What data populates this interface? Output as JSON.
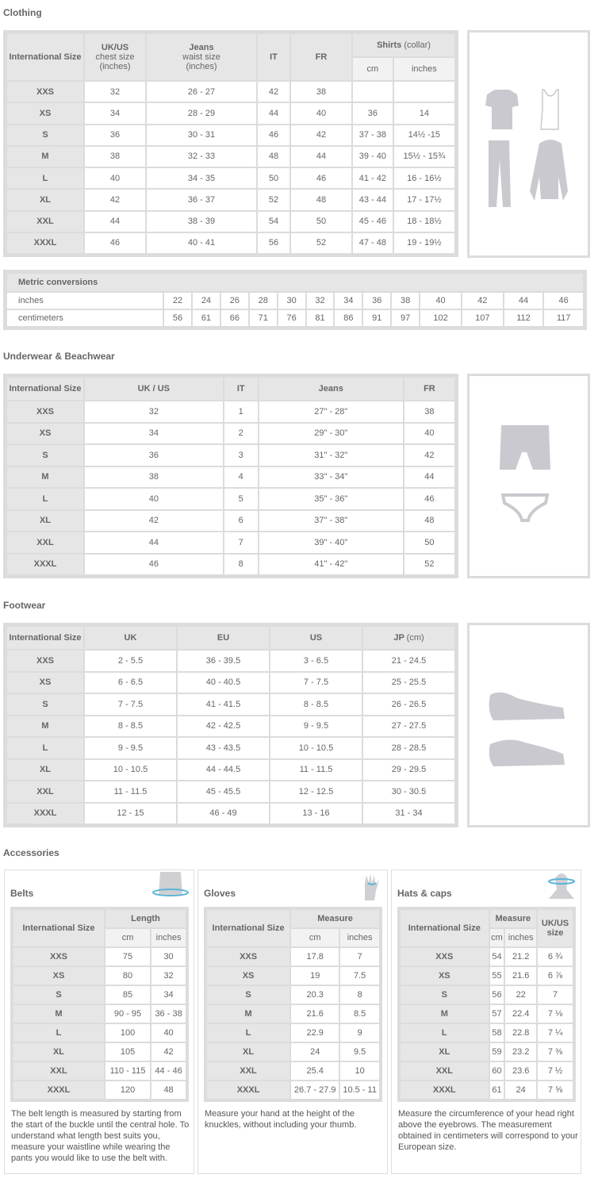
{
  "clothing": {
    "title": "Clothing",
    "h_int": "International Size",
    "h_ukus": "UK/US",
    "h_ukus_sub": "chest size",
    "h_ukus_unit": "(inches)",
    "h_jeans": "Jeans",
    "h_jeans_sub": "waist size",
    "h_jeans_unit": "(inches)",
    "h_it": "IT",
    "h_fr": "FR",
    "h_shirts": "Shirts",
    "h_shirts_sub": "(collar)",
    "h_cm": "cm",
    "h_in": "inches",
    "rows": [
      [
        "XXS",
        "32",
        "26 - 27",
        "42",
        "38",
        "",
        ""
      ],
      [
        "XS",
        "34",
        "28 - 29",
        "44",
        "40",
        "36",
        "14"
      ],
      [
        "S",
        "36",
        "30 - 31",
        "46",
        "42",
        "37 - 38",
        "14½ -15"
      ],
      [
        "M",
        "38",
        "32 - 33",
        "48",
        "44",
        "39 - 40",
        "15½ - 15¾"
      ],
      [
        "L",
        "40",
        "34 - 35",
        "50",
        "46",
        "41 - 42",
        "16 - 16½"
      ],
      [
        "XL",
        "42",
        "36 - 37",
        "52",
        "48",
        "43 - 44",
        "17 - 17½"
      ],
      [
        "XXL",
        "44",
        "38 - 39",
        "54",
        "50",
        "45 - 46",
        "18 - 18½"
      ],
      [
        "XXXL",
        "46",
        "40 - 41",
        "56",
        "52",
        "47 - 48",
        "19 - 19½"
      ]
    ]
  },
  "metric": {
    "title": "Metric conversions",
    "rows": [
      [
        "inches",
        "22",
        "24",
        "26",
        "28",
        "30",
        "32",
        "34",
        "36",
        "38",
        "40",
        "42",
        "44",
        "46"
      ],
      [
        "centimeters",
        "56",
        "61",
        "66",
        "71",
        "76",
        "81",
        "86",
        "91",
        "97",
        "102",
        "107",
        "112",
        "117"
      ]
    ]
  },
  "underwear": {
    "title": "Underwear & Beachwear",
    "headers": [
      "International Size",
      "UK / US",
      "IT",
      "Jeans",
      "FR"
    ],
    "rows": [
      [
        "XXS",
        "32",
        "1",
        "27\" - 28\"",
        "38"
      ],
      [
        "XS",
        "34",
        "2",
        "29\" - 30\"",
        "40"
      ],
      [
        "S",
        "36",
        "3",
        "31\" - 32\"",
        "42"
      ],
      [
        "M",
        "38",
        "4",
        "33\" - 34\"",
        "44"
      ],
      [
        "L",
        "40",
        "5",
        "35\" - 36\"",
        "46"
      ],
      [
        "XL",
        "42",
        "6",
        "37\" - 38\"",
        "48"
      ],
      [
        "XXL",
        "44",
        "7",
        "39\" - 40\"",
        "50"
      ],
      [
        "XXXL",
        "46",
        "8",
        "41\" - 42\"",
        "52"
      ]
    ]
  },
  "footwear": {
    "title": "Footwear",
    "headers": [
      "International Size",
      "UK",
      "EU",
      "US",
      "JP"
    ],
    "jp_unit": "(cm)",
    "rows": [
      [
        "XXS",
        "2 - 5.5",
        "36 - 39.5",
        "3 - 6.5",
        "21 - 24.5"
      ],
      [
        "XS",
        "6 - 6.5",
        "40 - 40.5",
        "7 - 7.5",
        "25 - 25.5"
      ],
      [
        "S",
        "7 - 7.5",
        "41 - 41.5",
        "8 - 8.5",
        "26 - 26.5"
      ],
      [
        "M",
        "8 - 8.5",
        "42 - 42.5",
        "9 - 9.5",
        "27 - 27.5"
      ],
      [
        "L",
        "9 - 9.5",
        "43 - 43.5",
        "10 - 10.5",
        "28 - 28.5"
      ],
      [
        "XL",
        "10 - 10.5",
        "44 - 44.5",
        "11 - 11.5",
        "29 - 29.5"
      ],
      [
        "XXL",
        "11 - 11.5",
        "45 - 45.5",
        "12 - 12.5",
        "30 - 30.5"
      ],
      [
        "XXXL",
        "12 - 15",
        "46 - 49",
        "13 - 16",
        "31 - 34"
      ]
    ]
  },
  "accessories": {
    "title": "Accessories",
    "belts": {
      "title": "Belts",
      "h_int": "International Size",
      "h_group": "Length",
      "h_a": "cm",
      "h_b": "inches",
      "rows": [
        [
          "XXS",
          "75",
          "30"
        ],
        [
          "XS",
          "80",
          "32"
        ],
        [
          "S",
          "85",
          "34"
        ],
        [
          "M",
          "90 - 95",
          "36 - 38"
        ],
        [
          "L",
          "100",
          "40"
        ],
        [
          "XL",
          "105",
          "42"
        ],
        [
          "XXL",
          "110 - 115",
          "44 - 46"
        ],
        [
          "XXXL",
          "120",
          "48"
        ]
      ],
      "note": "The belt length is measured by starting from the start of the buckle until the central hole. To understand what length best suits  you, measure your waistline while wearing the pants you would like to use the belt with."
    },
    "gloves": {
      "title": "Gloves",
      "h_int": "International Size",
      "h_group": "Measure",
      "h_a": "cm",
      "h_b": "inches",
      "rows": [
        [
          "XXS",
          "17.8",
          "7"
        ],
        [
          "XS",
          "19",
          "7.5"
        ],
        [
          "S",
          "20.3",
          "8"
        ],
        [
          "M",
          "21.6",
          "8.5"
        ],
        [
          "L",
          "22.9",
          "9"
        ],
        [
          "XL",
          "24",
          "9.5"
        ],
        [
          "XXL",
          "25.4",
          "10"
        ],
        [
          "XXXL",
          "26.7 - 27.9",
          "10.5 - 11"
        ]
      ],
      "note": "Measure your hand at the height of the knuckles, without including your thumb."
    },
    "hats": {
      "title": "Hats & caps",
      "h_int": "International Size",
      "h_group": "Measure",
      "h_a": "cm",
      "h_b": "inches",
      "h_c": "UK/US size",
      "rows": [
        [
          "XXS",
          "54",
          "21.2",
          "6 ¾"
        ],
        [
          "XS",
          "55",
          "21.6",
          "6 ⅞"
        ],
        [
          "S",
          "56",
          "22",
          "7"
        ],
        [
          "M",
          "57",
          "22.4",
          "7 ⅛"
        ],
        [
          "L",
          "58",
          "22.8",
          "7 ¼"
        ],
        [
          "XL",
          "59",
          "23.2",
          "7 ⅜"
        ],
        [
          "XXL",
          "60",
          "23.6",
          "7 ½"
        ],
        [
          "XXXL",
          "61",
          "24",
          "7 ⅝"
        ]
      ],
      "note": "Measure the circumference of your head right above the eyebrows. The measurement obtained in centimeters will correspond to your European size."
    }
  },
  "colors": {
    "frame": "#dcdcdc",
    "header": "#e6e6e6",
    "text": "#666666",
    "accent": "#5ab4d6"
  }
}
